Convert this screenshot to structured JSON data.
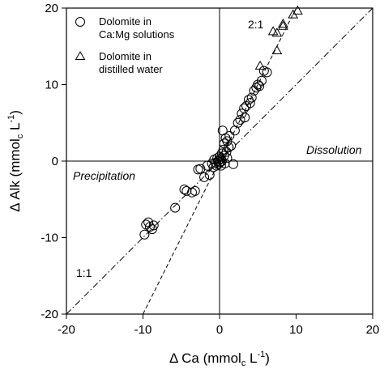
{
  "chart_data": {
    "type": "scatter",
    "xlabel_parts": [
      "Δ Ca (mmol",
      "c",
      " L",
      "-1",
      ")"
    ],
    "ylabel_parts": [
      "Δ Alk (mmol",
      "c",
      " L",
      "-1",
      ")"
    ],
    "xlim": [
      -20,
      20
    ],
    "ylim": [
      -20,
      20
    ],
    "xticks": [
      -20,
      -10,
      0,
      10,
      20
    ],
    "yticks": [
      -20,
      -10,
      0,
      10,
      20
    ],
    "grid": false,
    "zero_lines": true,
    "legend_position": "top-left",
    "series": [
      {
        "name_lines": [
          "Dolomite in",
          "Ca:Mg solutions"
        ],
        "marker": "circle",
        "points": [
          [
            -9.8,
            -9.6
          ],
          [
            -9.6,
            -8.3
          ],
          [
            -9.3,
            -8.0
          ],
          [
            -9.1,
            -8.6
          ],
          [
            -8.8,
            -8.9
          ],
          [
            -8.6,
            -8.4
          ],
          [
            -5.8,
            -6.1
          ],
          [
            -4.6,
            -3.7
          ],
          [
            -4.3,
            -3.9
          ],
          [
            -3.6,
            -4.1
          ],
          [
            -3.2,
            -3.9
          ],
          [
            -2.8,
            -1.1
          ],
          [
            -2.5,
            -1.0
          ],
          [
            -2.0,
            -2.1
          ],
          [
            -1.6,
            -0.6
          ],
          [
            -1.3,
            -1.8
          ],
          [
            -1.0,
            -0.3
          ],
          [
            -0.8,
            -0.8
          ],
          [
            -0.7,
            0.2
          ],
          [
            -0.5,
            -0.2
          ],
          [
            -0.4,
            -0.6
          ],
          [
            -0.3,
            0.4
          ],
          [
            -0.2,
            0.0
          ],
          [
            -0.1,
            -0.4
          ],
          [
            0.0,
            0.2
          ],
          [
            0.0,
            0.6
          ],
          [
            0.1,
            -0.1
          ],
          [
            0.2,
            0.3
          ],
          [
            0.2,
            -0.6
          ],
          [
            0.3,
            1.0
          ],
          [
            0.3,
            0.0
          ],
          [
            0.4,
            4.0
          ],
          [
            0.5,
            1.5
          ],
          [
            0.6,
            2.3
          ],
          [
            0.6,
            0.7
          ],
          [
            0.7,
            -0.3
          ],
          [
            0.8,
            3.0
          ],
          [
            0.9,
            1.2
          ],
          [
            1.0,
            0.4
          ],
          [
            1.0,
            2.6
          ],
          [
            1.2,
            1.8
          ],
          [
            1.3,
            3.3
          ],
          [
            1.5,
            2.0
          ],
          [
            1.8,
            -0.4
          ],
          [
            2.0,
            4.0
          ],
          [
            2.4,
            5.0
          ],
          [
            2.7,
            5.4
          ],
          [
            2.9,
            6.2
          ],
          [
            3.2,
            6.9
          ],
          [
            3.3,
            5.7
          ],
          [
            3.5,
            7.2
          ],
          [
            3.8,
            8.0
          ],
          [
            4.0,
            7.6
          ],
          [
            4.2,
            8.3
          ],
          [
            4.5,
            9.2
          ],
          [
            4.8,
            9.6
          ],
          [
            5.0,
            10.0
          ],
          [
            5.2,
            9.8
          ],
          [
            5.5,
            10.5
          ],
          [
            5.8,
            11.8
          ],
          [
            6.2,
            11.6
          ]
        ]
      },
      {
        "name_lines": [
          "Dolomite in",
          "distilled water"
        ],
        "marker": "triangle",
        "points": [
          [
            5.3,
            12.4
          ],
          [
            7.0,
            16.9
          ],
          [
            7.5,
            14.4
          ],
          [
            7.5,
            16.7
          ],
          [
            8.3,
            17.6
          ],
          [
            8.3,
            17.9
          ],
          [
            9.6,
            19.1
          ],
          [
            10.2,
            19.6
          ]
        ]
      }
    ],
    "reference_lines": [
      {
        "label": "1:1",
        "slope": 1,
        "style": "dash-dot"
      },
      {
        "label": "2:1",
        "slope": 2,
        "style": "dash"
      }
    ],
    "annotations": {
      "dissolution": "Dissolution",
      "precipitation": "Precipitation"
    }
  }
}
